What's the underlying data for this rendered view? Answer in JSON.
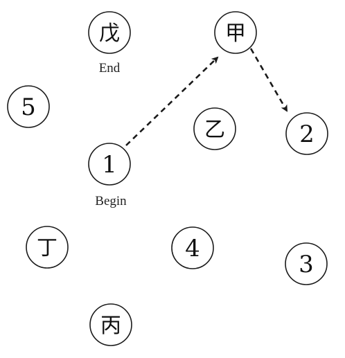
{
  "diagram": {
    "nodes": [
      {
        "id": "wu",
        "label": "戊"
      },
      {
        "id": "jia",
        "label": "甲"
      },
      {
        "id": "five",
        "label": "5"
      },
      {
        "id": "yi",
        "label": "乙"
      },
      {
        "id": "two",
        "label": "2"
      },
      {
        "id": "one",
        "label": "1"
      },
      {
        "id": "ding",
        "label": "丁"
      },
      {
        "id": "four",
        "label": "4"
      },
      {
        "id": "three",
        "label": "3"
      },
      {
        "id": "bing",
        "label": "丙"
      }
    ],
    "captions": {
      "end": "End",
      "begin": "Begin"
    },
    "edges": [
      {
        "from": "1",
        "to": "甲",
        "style": "dashed"
      },
      {
        "from": "甲",
        "to": "2",
        "style": "dashed"
      }
    ],
    "colors": {
      "stroke": "#1a1a1a",
      "fill": "#ffffff"
    }
  }
}
